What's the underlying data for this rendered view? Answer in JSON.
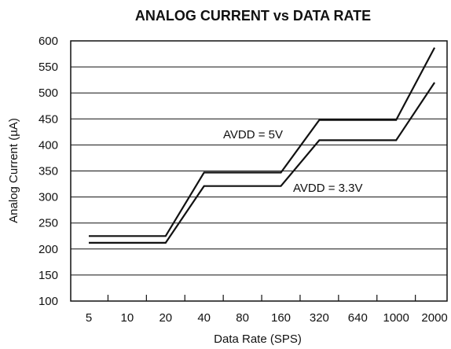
{
  "chart_data": {
    "type": "line",
    "title": "ANALOG CURRENT vs DATA RATE",
    "xlabel": "Data Rate (SPS)",
    "ylabel": "Analog Current (µA)",
    "x_scale": "categorical",
    "categories": [
      "5",
      "10",
      "20",
      "40",
      "80",
      "160",
      "320",
      "640",
      "1000",
      "2000"
    ],
    "ylim": [
      100,
      600
    ],
    "yticks": [
      100,
      150,
      200,
      250,
      300,
      350,
      400,
      450,
      500,
      550,
      600
    ],
    "grid": "horizontal",
    "series": [
      {
        "name": "AVDD = 5V",
        "values": [
          225,
          225,
          225,
          347,
          347,
          347,
          448,
          448,
          448,
          587
        ]
      },
      {
        "name": "AVDD = 3.3V",
        "values": [
          212,
          212,
          212,
          321,
          321,
          321,
          409,
          409,
          409,
          520
        ]
      }
    ]
  }
}
